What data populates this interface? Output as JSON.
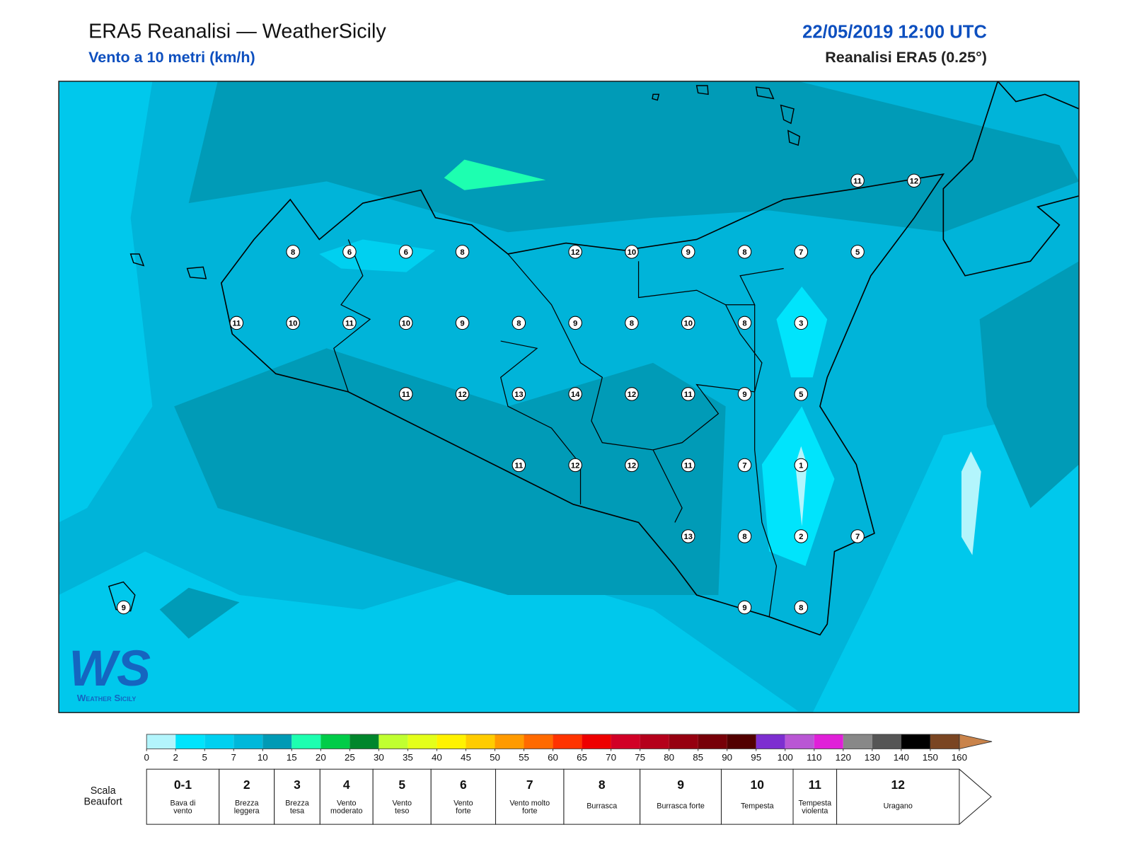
{
  "header": {
    "title": "ERA5 Reanalisi — WeatherSicily",
    "subtitle": "Vento a 10 metri (km/h)",
    "date": "22/05/2019 12:00 UTC",
    "source": "Reanalisi ERA5 (0.25°)"
  },
  "stations": [
    11,
    12,
    8,
    6,
    6,
    8,
    12,
    10,
    9,
    8,
    7,
    5,
    11,
    10,
    11,
    10,
    9,
    8,
    9,
    8,
    10,
    8,
    3,
    11,
    12,
    13,
    14,
    12,
    11,
    9,
    5,
    11,
    12,
    12,
    11,
    7,
    1,
    13,
    8,
    2,
    7,
    9,
    8,
    9
  ],
  "colorbar": {
    "ticks": [
      0,
      2,
      5,
      7,
      10,
      15,
      20,
      25,
      30,
      35,
      40,
      45,
      50,
      55,
      60,
      65,
      70,
      75,
      80,
      85,
      90,
      95,
      100,
      110,
      120,
      130,
      140,
      150,
      160
    ],
    "colors": [
      "#b3f5fc",
      "#00e4fc",
      "#00d0f0",
      "#00b8da",
      "#009ab5",
      "#1dffb0",
      "#00cc48",
      "#00862c",
      "#c0ff30",
      "#e4ff1a",
      "#fff200",
      "#ffcc00",
      "#ff9a00",
      "#ff6a00",
      "#ff3300",
      "#ee0000",
      "#d10026",
      "#b5001b",
      "#960010",
      "#770008",
      "#520000",
      "#7d2ed0",
      "#b956d4",
      "#e020d8",
      "#888888",
      "#555555",
      "#000000",
      "#7a4522",
      "#c9834a"
    ],
    "extend_color": "#c9834a"
  },
  "beaufort": {
    "label": "Scala Beaufort",
    "forces": [
      {
        "force": "0-1",
        "name": "Bava di vento"
      },
      {
        "force": "2",
        "name": "Brezza leggera"
      },
      {
        "force": "3",
        "name": "Brezza tesa"
      },
      {
        "force": "4",
        "name": "Vento moderato"
      },
      {
        "force": "5",
        "name": "Vento teso"
      },
      {
        "force": "6",
        "name": "Vento forte"
      },
      {
        "force": "7",
        "name": "Vento molto forte"
      },
      {
        "force": "8",
        "name": "Burrasca"
      },
      {
        "force": "9",
        "name": "Burrasca forte"
      },
      {
        "force": "10",
        "name": "Tempesta"
      },
      {
        "force": "11",
        "name": "Tempesta violenta"
      },
      {
        "force": "12",
        "name": "Uragano"
      }
    ]
  },
  "logo": {
    "mark": "WS",
    "text": "Weather Sicily"
  }
}
